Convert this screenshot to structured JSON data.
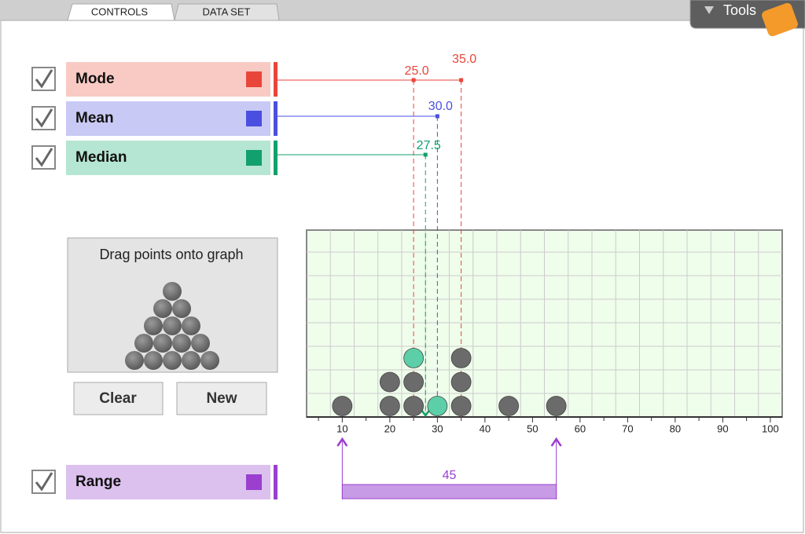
{
  "tabs": [
    "CONTROLS",
    "DATA SET"
  ],
  "tools": {
    "label": "Tools"
  },
  "statistics": [
    {
      "name": "Mode",
      "values": [
        25,
        35
      ],
      "value_labels": [
        "25.0",
        "35.0"
      ],
      "color": "#e8463a",
      "fill": "#f9cac4",
      "checked": true
    },
    {
      "name": "Mean",
      "values": [
        30
      ],
      "value_labels": [
        "30.0"
      ],
      "color": "#4a4fe0",
      "fill": "#c9c9f5",
      "checked": true
    },
    {
      "name": "Median",
      "values": [
        27.5
      ],
      "value_labels": [
        "27.5"
      ],
      "color": "#12a06c",
      "fill": "#b5e6d3",
      "checked": true
    }
  ],
  "palette": {
    "instruction": "Drag points onto graph",
    "buttons": [
      "Clear",
      "New"
    ]
  },
  "chart_data": {
    "type": "dot",
    "values": [
      10,
      20,
      20,
      25,
      25,
      35,
      35,
      35,
      45,
      55,
      25,
      30
    ],
    "colors": [
      "#6b6b6b",
      "#6b6b6b",
      "#6b6b6b",
      "#6b6b6b",
      "#6b6b6b",
      "#6b6b6b",
      "#6b6b6b",
      "#6b6b6b",
      "#6b6b6b",
      "#6b6b6b",
      "#5ccfa8",
      "#5ccfa8"
    ],
    "xlim": [
      2.5,
      102.5
    ],
    "xticks": [
      10,
      20,
      30,
      40,
      50,
      60,
      70,
      80,
      90,
      100
    ],
    "grid": true,
    "background": "#effdeb"
  },
  "range": {
    "name": "Range",
    "value": 45,
    "color": "#9b3fcf",
    "fill": "#dcc0ee",
    "checked": true
  }
}
